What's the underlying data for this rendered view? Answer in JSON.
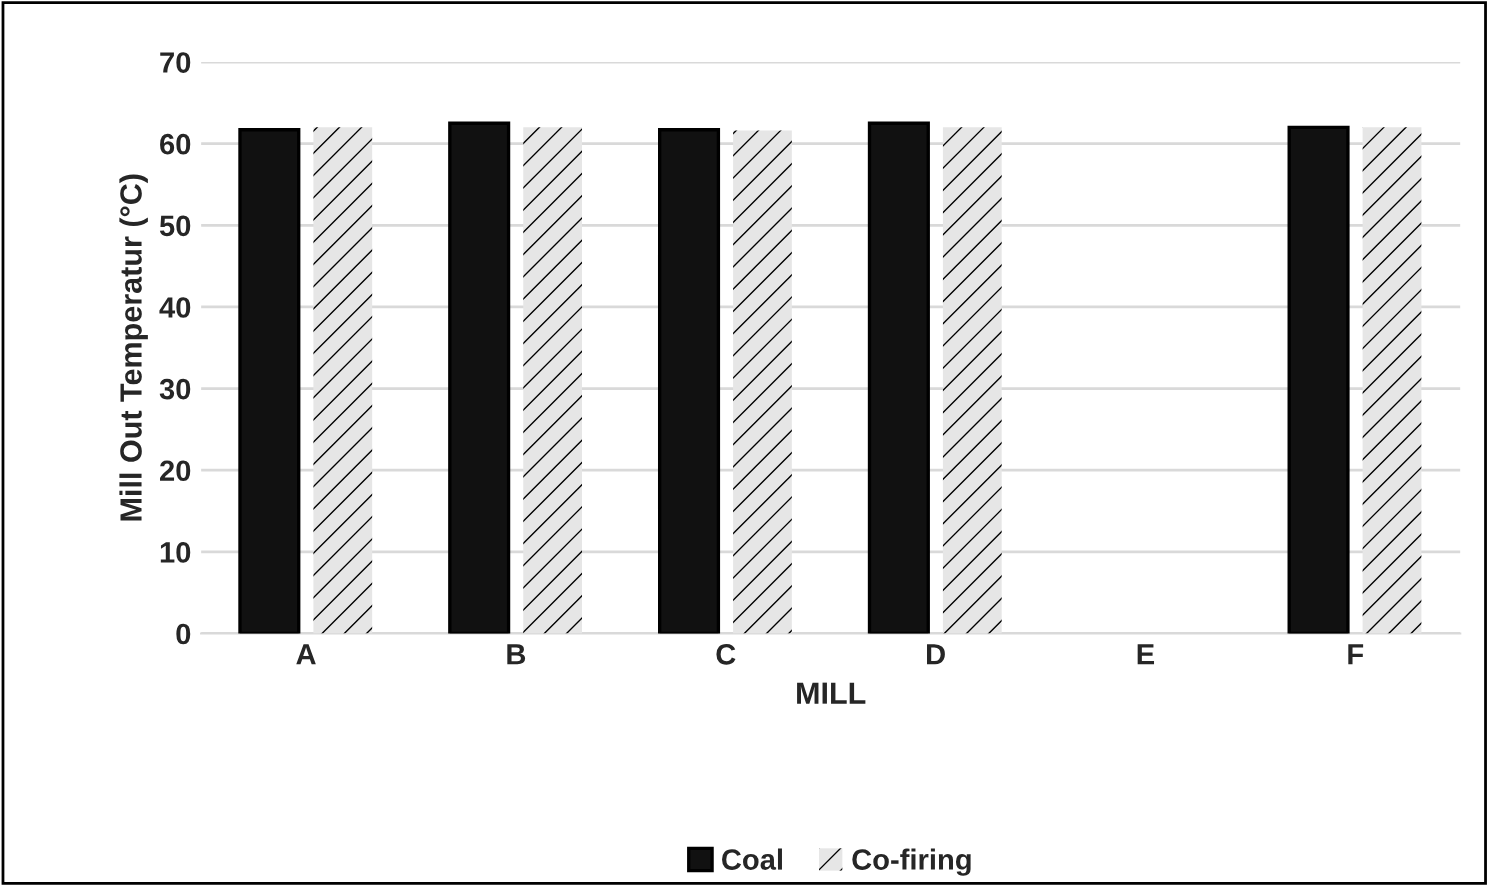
{
  "chart_data": {
    "type": "bar",
    "xlabel": "MILL",
    "ylabel": "Mill Out Temperatur (°C)",
    "categories": [
      "A",
      "B",
      "C",
      "D",
      "E",
      "F"
    ],
    "series": [
      {
        "name": "Coal",
        "color": "#111111",
        "values": [
          61.7,
          62.5,
          61.7,
          62.5,
          null,
          62.0
        ]
      },
      {
        "name": "Co-firing",
        "color": "#e6e6e6",
        "values": [
          62.0,
          62.0,
          61.6,
          62.0,
          null,
          62.0
        ]
      }
    ],
    "ylim": [
      0,
      70
    ],
    "yticks": [
      0,
      10,
      20,
      30,
      40,
      50,
      60,
      70
    ],
    "grid": "y",
    "legend": "bottom"
  }
}
